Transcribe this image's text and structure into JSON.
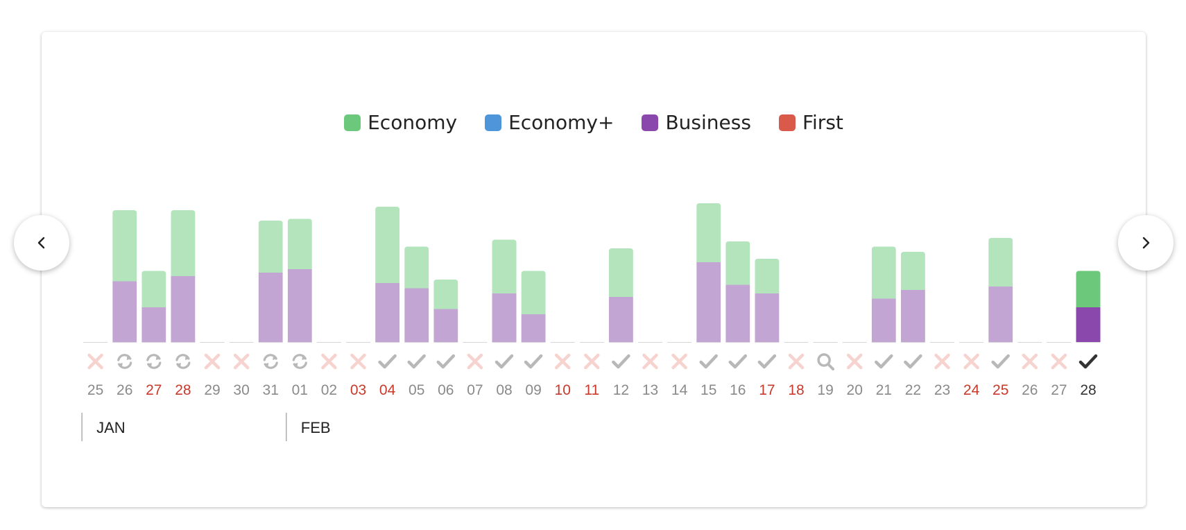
{
  "chart_data": {
    "type": "bar",
    "stacked": true,
    "legend_position": "top-center",
    "series": [
      {
        "name": "Economy",
        "color": "#6cc97c",
        "muted_color": "#b3e4bb",
        "values": [
          0,
          41,
          21,
          38,
          0,
          0,
          30,
          29,
          0,
          0,
          44,
          24,
          17,
          0,
          31,
          25,
          0,
          0,
          28,
          0,
          0,
          34,
          25,
          20,
          0,
          0,
          0,
          30,
          22,
          0,
          0,
          28,
          0,
          0,
          21
        ]
      },
      {
        "name": "Economy+",
        "color": "#4e95d9",
        "muted_color": "#a8cbed",
        "values": [
          0,
          0,
          0,
          0,
          0,
          0,
          0,
          0,
          0,
          0,
          0,
          0,
          0,
          0,
          0,
          0,
          0,
          0,
          0,
          0,
          0,
          0,
          0,
          0,
          0,
          0,
          0,
          0,
          0,
          0,
          0,
          0,
          0,
          0,
          0
        ]
      },
      {
        "name": "Business",
        "color": "#8a48ad",
        "muted_color": "#c3a5d4",
        "values": [
          0,
          35,
          20,
          38,
          0,
          0,
          40,
          42,
          0,
          0,
          34,
          31,
          19,
          0,
          28,
          16,
          0,
          0,
          26,
          0,
          0,
          46,
          33,
          28,
          0,
          0,
          0,
          25,
          30,
          0,
          0,
          32,
          0,
          0,
          20
        ]
      },
      {
        "name": "First",
        "color": "#d9594a",
        "muted_color": "#edaaa2",
        "values": [
          0,
          0,
          0,
          0,
          0,
          0,
          0,
          0,
          0,
          0,
          0,
          0,
          0,
          0,
          0,
          0,
          0,
          0,
          0,
          0,
          0,
          0,
          0,
          0,
          0,
          0,
          0,
          0,
          0,
          0,
          0,
          0,
          0,
          0,
          0
        ]
      }
    ],
    "days": [
      {
        "date": "25",
        "status": "none",
        "highlight": false
      },
      {
        "date": "26",
        "status": "refresh",
        "highlight": false
      },
      {
        "date": "27",
        "status": "refresh",
        "highlight": true
      },
      {
        "date": "28",
        "status": "refresh",
        "highlight": true
      },
      {
        "date": "29",
        "status": "none",
        "highlight": false
      },
      {
        "date": "30",
        "status": "none",
        "highlight": false
      },
      {
        "date": "31",
        "status": "refresh",
        "highlight": false
      },
      {
        "date": "01",
        "status": "refresh",
        "highlight": false
      },
      {
        "date": "02",
        "status": "none",
        "highlight": false
      },
      {
        "date": "03",
        "status": "none",
        "highlight": true
      },
      {
        "date": "04",
        "status": "check",
        "highlight": true
      },
      {
        "date": "05",
        "status": "check",
        "highlight": false
      },
      {
        "date": "06",
        "status": "check",
        "highlight": false
      },
      {
        "date": "07",
        "status": "none",
        "highlight": false
      },
      {
        "date": "08",
        "status": "check",
        "highlight": false
      },
      {
        "date": "09",
        "status": "check",
        "highlight": false
      },
      {
        "date": "10",
        "status": "none",
        "highlight": true
      },
      {
        "date": "11",
        "status": "none",
        "highlight": true
      },
      {
        "date": "12",
        "status": "check",
        "highlight": false
      },
      {
        "date": "13",
        "status": "none",
        "highlight": false
      },
      {
        "date": "14",
        "status": "none",
        "highlight": false
      },
      {
        "date": "15",
        "status": "check",
        "highlight": false
      },
      {
        "date": "16",
        "status": "check",
        "highlight": false
      },
      {
        "date": "17",
        "status": "check",
        "highlight": true
      },
      {
        "date": "18",
        "status": "none",
        "highlight": true
      },
      {
        "date": "19",
        "status": "search",
        "highlight": false
      },
      {
        "date": "20",
        "status": "none",
        "highlight": false
      },
      {
        "date": "21",
        "status": "check",
        "highlight": false
      },
      {
        "date": "22",
        "status": "check",
        "highlight": false
      },
      {
        "date": "23",
        "status": "none",
        "highlight": false
      },
      {
        "date": "24",
        "status": "none",
        "highlight": true
      },
      {
        "date": "25",
        "status": "check",
        "highlight": true
      },
      {
        "date": "26",
        "status": "none",
        "highlight": false
      },
      {
        "date": "27",
        "status": "none",
        "highlight": false
      },
      {
        "date": "28",
        "status": "check",
        "highlight": false,
        "selected": true
      }
    ],
    "months": [
      {
        "label": "JAN",
        "start_index": 0
      },
      {
        "label": "FEB",
        "start_index": 7
      }
    ],
    "ylim": [
      0,
      100
    ]
  },
  "colors": {
    "date_text": "#8a8a8a",
    "date_highlight": "#c9392b",
    "date_selected": "#333333",
    "icon_muted": "#b8b8b8",
    "icon_none": "#f7d3cf",
    "icon_selected": "#333333",
    "baseline": "#d6d6d6"
  },
  "nav": {
    "prev_icon": "chevron-left-icon",
    "next_icon": "chevron-right-icon"
  }
}
